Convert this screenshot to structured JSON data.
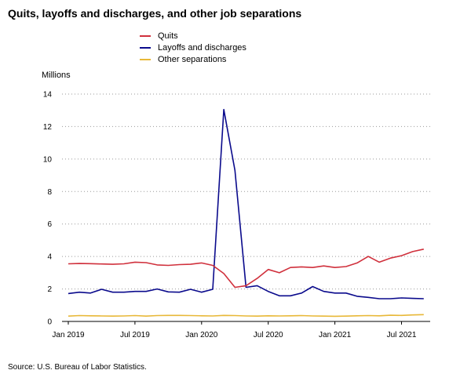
{
  "chart_data": {
    "type": "line",
    "title": "Quits, layoffs and discharges, and other job separations",
    "ylabel": "Millions",
    "source": "Source: U.S. Bureau of Labor Statistics.",
    "ylim": [
      0,
      14
    ],
    "yticks": [
      0,
      2,
      4,
      6,
      8,
      10,
      12,
      14
    ],
    "xlim": [
      "2019-01",
      "2021-09"
    ],
    "xticks": [
      {
        "label": "Jan 2019",
        "index": 0
      },
      {
        "label": "Jul 2019",
        "index": 6
      },
      {
        "label": "Jan 2020",
        "index": 12
      },
      {
        "label": "Jul 2020",
        "index": 18
      },
      {
        "label": "Jan 2021",
        "index": 24
      },
      {
        "label": "Jul 2021",
        "index": 30
      }
    ],
    "grid": "horizontal-dotted",
    "legend_position": "top",
    "x": [
      "2019-01",
      "2019-02",
      "2019-03",
      "2019-04",
      "2019-05",
      "2019-06",
      "2019-07",
      "2019-08",
      "2019-09",
      "2019-10",
      "2019-11",
      "2019-12",
      "2020-01",
      "2020-02",
      "2020-03",
      "2020-04",
      "2020-05",
      "2020-06",
      "2020-07",
      "2020-08",
      "2020-09",
      "2020-10",
      "2020-11",
      "2020-12",
      "2021-01",
      "2021-02",
      "2021-03",
      "2021-04",
      "2021-05",
      "2021-06",
      "2021-07",
      "2021-08",
      "2021-09"
    ],
    "series": [
      {
        "name": "Quits",
        "color": "#d0303c",
        "values": [
          3.55,
          3.57,
          3.56,
          3.54,
          3.52,
          3.55,
          3.65,
          3.62,
          3.48,
          3.45,
          3.5,
          3.52,
          3.6,
          3.45,
          2.95,
          2.1,
          2.2,
          2.65,
          3.2,
          3.0,
          3.32,
          3.36,
          3.32,
          3.42,
          3.32,
          3.38,
          3.6,
          4.0,
          3.65,
          3.9,
          4.05,
          4.3,
          4.45
        ]
      },
      {
        "name": "Layoffs and discharges",
        "color": "#0a0a8c",
        "values": [
          1.72,
          1.8,
          1.75,
          1.98,
          1.8,
          1.8,
          1.85,
          1.85,
          2.0,
          1.82,
          1.8,
          1.98,
          1.8,
          1.98,
          13.05,
          9.3,
          2.1,
          2.2,
          1.85,
          1.58,
          1.58,
          1.75,
          2.15,
          1.85,
          1.75,
          1.75,
          1.55,
          1.48,
          1.4,
          1.4,
          1.45,
          1.42,
          1.4
        ]
      },
      {
        "name": "Other separations",
        "color": "#e8b838",
        "values": [
          0.33,
          0.36,
          0.35,
          0.34,
          0.33,
          0.34,
          0.36,
          0.33,
          0.36,
          0.37,
          0.37,
          0.36,
          0.35,
          0.34,
          0.37,
          0.36,
          0.34,
          0.33,
          0.35,
          0.34,
          0.35,
          0.36,
          0.34,
          0.33,
          0.32,
          0.33,
          0.35,
          0.36,
          0.35,
          0.38,
          0.37,
          0.4,
          0.42
        ]
      }
    ]
  }
}
